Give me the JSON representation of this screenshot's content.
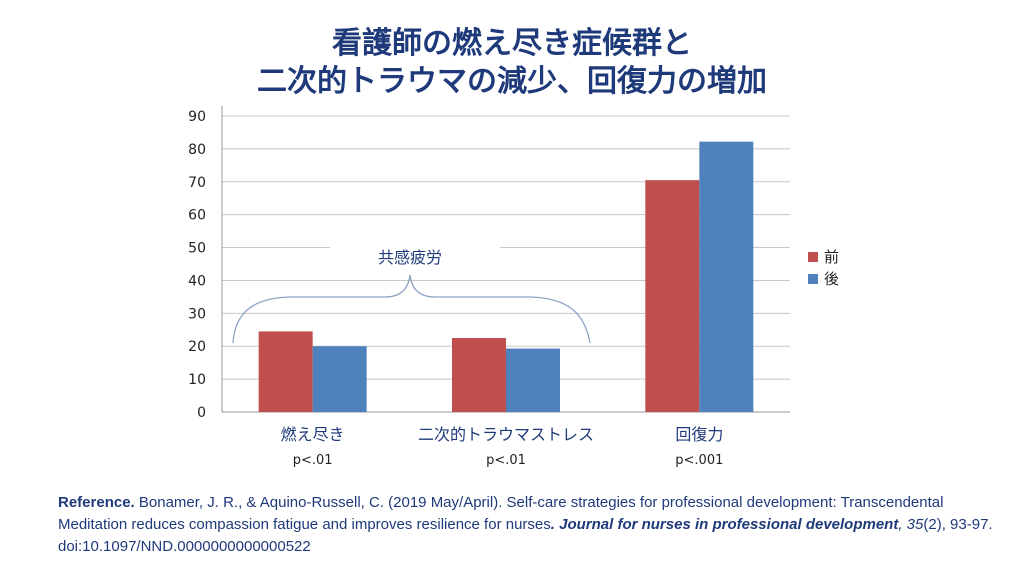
{
  "title_line1": "看護師の燃え尽き症候群と",
  "title_line2": "二次的トラウマの減少、回復力の増加",
  "chart_data": {
    "type": "bar",
    "categories": [
      "燃え尽き",
      "二次的トラウマストレス",
      "回復力"
    ],
    "p_values": [
      "p<.01",
      "p<.01",
      "p<.001"
    ],
    "series": [
      {
        "name": "前",
        "values": [
          24.5,
          22.5,
          70.5
        ],
        "color": "#c0504d"
      },
      {
        "name": "後",
        "values": [
          20,
          19.3,
          82.2
        ],
        "color": "#4f81bd"
      }
    ],
    "ylim": [
      0,
      90
    ],
    "yticks": [
      0,
      10,
      20,
      30,
      40,
      50,
      60,
      70,
      80,
      90
    ],
    "grid": true,
    "legend": "right",
    "annotation": "共感疲労"
  },
  "reference": {
    "label": "Reference.",
    "text1": " Bonamer, J. R., & Aquino-Russell, C. (2019 May/April). Self-care strategies for professional development: Transcendental Meditation reduces compassion fatigue and improves resilience for nurses",
    "journal": ". Journal for nurses in professional development",
    "volume": ", 35",
    "rest": "(2), 93-97. doi:10.1097/NND.0000000000000522"
  }
}
